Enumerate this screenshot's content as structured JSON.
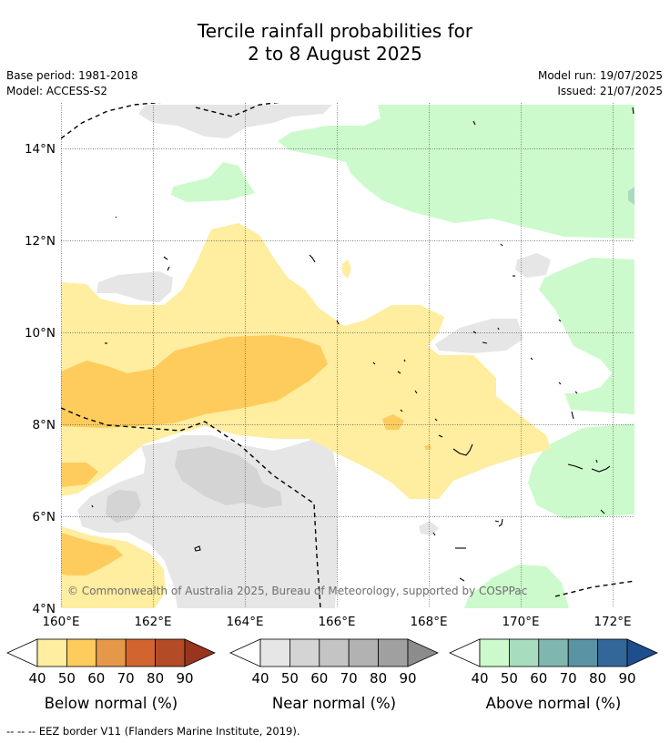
{
  "title_line1": "Tercile rainfall probabilities for",
  "title_line2": "2 to 8 August 2025",
  "base_period": "Base period: 1981-2018",
  "model": "Model: ACCESS-S2",
  "model_run": "Model run: 19/07/2025",
  "issued": "Issued: 21/07/2025",
  "copyright": "© Commonwealth of Australia 2025, Bureau of Meteorology, supported by COSPPac",
  "lat_ticks": [
    "14°N",
    "12°N",
    "10°N",
    "8°N",
    "6°N",
    "4°N"
  ],
  "lon_ticks": [
    "160°E",
    "162°E",
    "164°E",
    "166°E",
    "168°E",
    "170°E",
    "172°E"
  ],
  "colorbars": [
    {
      "label": "Below normal (%)",
      "ticks": [
        "40",
        "50",
        "60",
        "70",
        "80",
        "90"
      ],
      "low": "#ffffff",
      "colors": [
        "#ffeda0",
        "#fecc5c",
        "#e5984a",
        "#d2652f",
        "#b34b27"
      ],
      "high": "#98351f"
    },
    {
      "label": "Near normal (%)",
      "ticks": [
        "40",
        "50",
        "60",
        "70",
        "80",
        "90"
      ],
      "low": "#ffffff",
      "colors": [
        "#e6e6e6",
        "#d4d4d4",
        "#c4c4c4",
        "#b2b2b2",
        "#a0a0a0"
      ],
      "high": "#8c8c8c"
    },
    {
      "label": "Above normal (%)",
      "ticks": [
        "40",
        "50",
        "60",
        "70",
        "80",
        "90"
      ],
      "low": "#ffffff",
      "colors": [
        "#ccfacc",
        "#a8dcbe",
        "#7fb6b0",
        "#5a93a4",
        "#336699"
      ],
      "high": "#1f4e8c"
    }
  ],
  "footnote": "--  --  -- EEZ border V11 (Flanders Marine Institute, 2019)."
}
